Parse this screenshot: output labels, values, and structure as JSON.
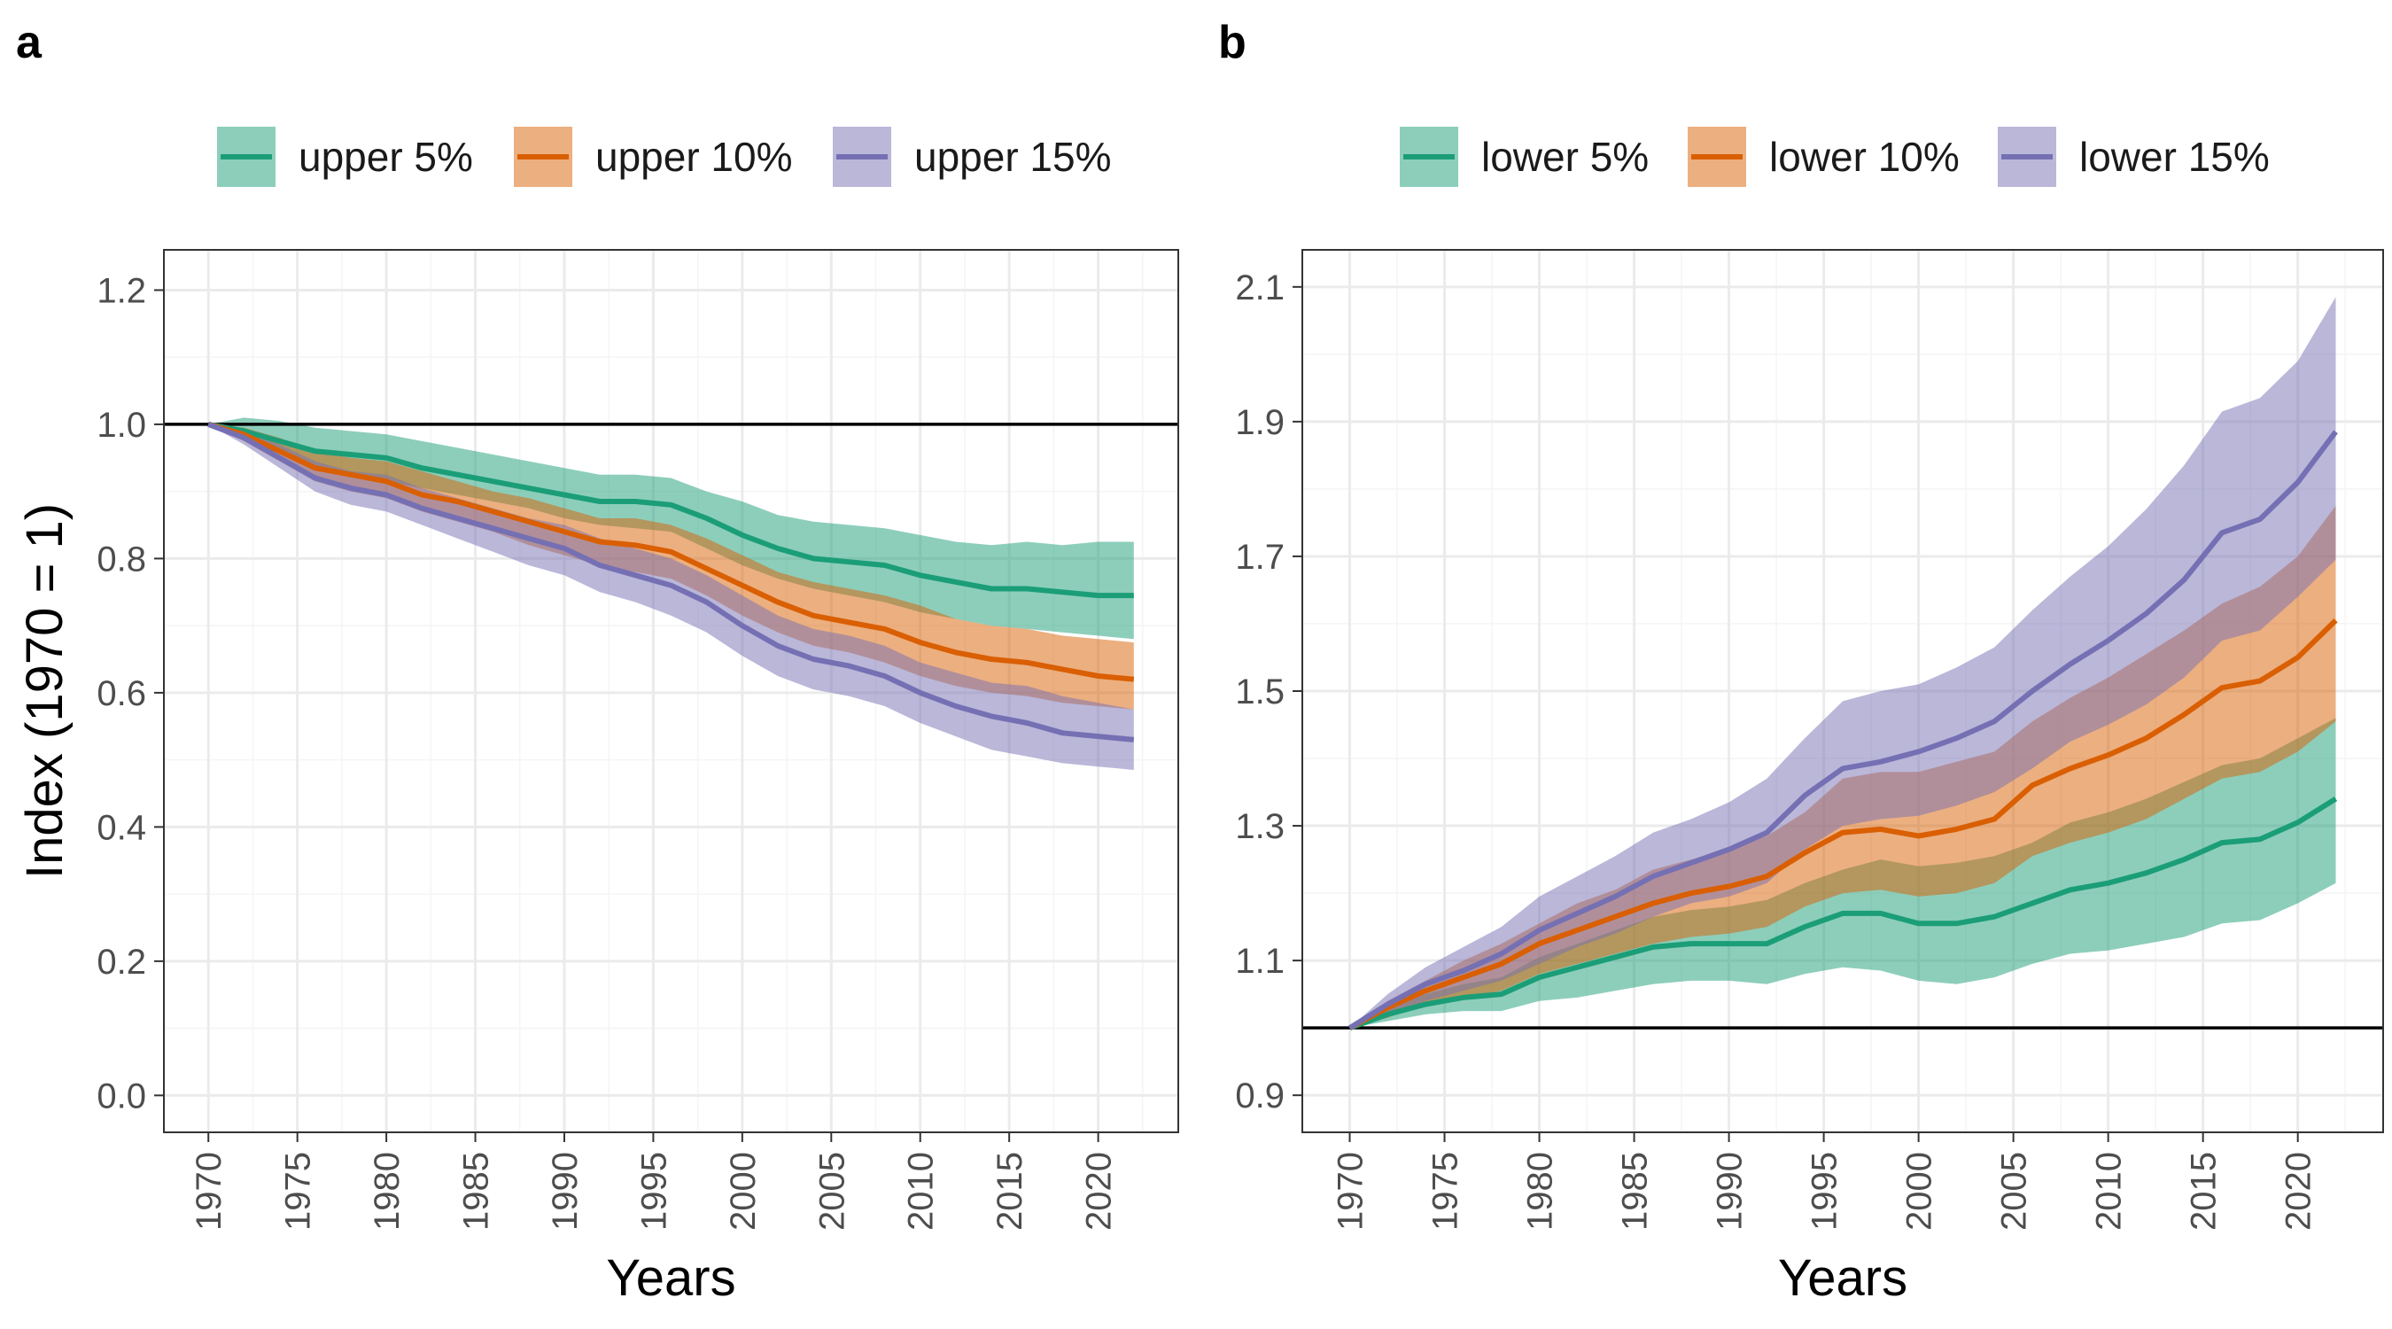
{
  "chart_data": [
    {
      "panel_label": "a",
      "type": "line",
      "xlabel": "Years",
      "ylabel": "Index (1970 = 1)",
      "xlim": [
        1967.5,
        2024.5
      ],
      "ylim": [
        -0.055,
        1.26
      ],
      "x_ticks": [
        "1970",
        "1975",
        "1980",
        "1985",
        "1990",
        "1995",
        "2000",
        "2005",
        "2010",
        "2015",
        "2020"
      ],
      "y_ticks": [
        "0.0",
        "0.2",
        "0.4",
        "0.6",
        "0.8",
        "1.0",
        "1.2"
      ],
      "reference_line": 1.0,
      "grid": true,
      "legend_position": "top",
      "series": [
        {
          "name": "upper 5%",
          "color": "#1b9e77",
          "fill": "#8fd0b8",
          "x": [
            1970,
            1972,
            1974,
            1976,
            1978,
            1980,
            1982,
            1984,
            1986,
            1988,
            1990,
            1992,
            1994,
            1996,
            1998,
            2000,
            2002,
            2004,
            2006,
            2008,
            2010,
            2012,
            2014,
            2016,
            2018,
            2020,
            2022
          ],
          "y": [
            1.0,
            0.99,
            0.975,
            0.96,
            0.955,
            0.95,
            0.935,
            0.925,
            0.915,
            0.905,
            0.895,
            0.885,
            0.885,
            0.88,
            0.86,
            0.835,
            0.815,
            0.8,
            0.795,
            0.79,
            0.775,
            0.765,
            0.755,
            0.755,
            0.75,
            0.745,
            0.745
          ],
          "lower": [
            1.0,
            0.985,
            0.96,
            0.935,
            0.925,
            0.915,
            0.905,
            0.895,
            0.885,
            0.875,
            0.86,
            0.85,
            0.845,
            0.84,
            0.815,
            0.79,
            0.77,
            0.755,
            0.745,
            0.735,
            0.72,
            0.71,
            0.7,
            0.695,
            0.69,
            0.685,
            0.68
          ],
          "upper": [
            1.0,
            1.01,
            1.005,
            0.995,
            0.99,
            0.985,
            0.975,
            0.965,
            0.955,
            0.945,
            0.935,
            0.925,
            0.925,
            0.92,
            0.9,
            0.885,
            0.865,
            0.855,
            0.85,
            0.845,
            0.835,
            0.825,
            0.82,
            0.825,
            0.82,
            0.825,
            0.825
          ]
        },
        {
          "name": "upper 10%",
          "color": "#d95f02",
          "fill": "#f0b080",
          "x": [
            1970,
            1972,
            1974,
            1976,
            1978,
            1980,
            1982,
            1984,
            1986,
            1988,
            1990,
            1992,
            1994,
            1996,
            1998,
            2000,
            2002,
            2004,
            2006,
            2008,
            2010,
            2012,
            2014,
            2016,
            2018,
            2020,
            2022
          ],
          "y": [
            1.0,
            0.985,
            0.96,
            0.935,
            0.925,
            0.915,
            0.895,
            0.885,
            0.87,
            0.855,
            0.84,
            0.825,
            0.82,
            0.81,
            0.785,
            0.76,
            0.735,
            0.715,
            0.705,
            0.695,
            0.675,
            0.66,
            0.65,
            0.645,
            0.635,
            0.625,
            0.62
          ],
          "lower": [
            1.0,
            0.975,
            0.945,
            0.915,
            0.9,
            0.89,
            0.87,
            0.855,
            0.84,
            0.82,
            0.805,
            0.79,
            0.78,
            0.77,
            0.745,
            0.715,
            0.69,
            0.67,
            0.66,
            0.645,
            0.625,
            0.61,
            0.6,
            0.595,
            0.585,
            0.58,
            0.575
          ],
          "upper": [
            1.0,
            0.995,
            0.98,
            0.96,
            0.95,
            0.945,
            0.93,
            0.915,
            0.9,
            0.89,
            0.875,
            0.86,
            0.86,
            0.85,
            0.83,
            0.805,
            0.78,
            0.765,
            0.755,
            0.745,
            0.73,
            0.71,
            0.7,
            0.695,
            0.685,
            0.68,
            0.675
          ]
        },
        {
          "name": "upper 15%",
          "color": "#7570b3",
          "fill": "#b9b6db",
          "x": [
            1970,
            1972,
            1974,
            1976,
            1978,
            1980,
            1982,
            1984,
            1986,
            1988,
            1990,
            1992,
            1994,
            1996,
            1998,
            2000,
            2002,
            2004,
            2006,
            2008,
            2010,
            2012,
            2014,
            2016,
            2018,
            2020,
            2022
          ],
          "y": [
            1.0,
            0.98,
            0.95,
            0.92,
            0.905,
            0.895,
            0.875,
            0.86,
            0.845,
            0.83,
            0.815,
            0.79,
            0.775,
            0.76,
            0.735,
            0.7,
            0.67,
            0.65,
            0.64,
            0.625,
            0.6,
            0.58,
            0.565,
            0.555,
            0.54,
            0.535,
            0.53
          ],
          "lower": [
            1.0,
            0.97,
            0.935,
            0.9,
            0.88,
            0.87,
            0.85,
            0.83,
            0.81,
            0.79,
            0.775,
            0.75,
            0.735,
            0.715,
            0.69,
            0.655,
            0.625,
            0.605,
            0.595,
            0.58,
            0.555,
            0.535,
            0.515,
            0.505,
            0.495,
            0.49,
            0.485
          ],
          "upper": [
            1.0,
            0.99,
            0.97,
            0.945,
            0.93,
            0.925,
            0.905,
            0.89,
            0.875,
            0.86,
            0.85,
            0.83,
            0.815,
            0.8,
            0.775,
            0.745,
            0.715,
            0.695,
            0.685,
            0.67,
            0.645,
            0.63,
            0.615,
            0.61,
            0.595,
            0.585,
            0.575
          ]
        }
      ]
    },
    {
      "panel_label": "b",
      "type": "line",
      "xlabel": "Years",
      "ylabel": "",
      "xlim": [
        1967.5,
        2024.5
      ],
      "ylim": [
        0.845,
        2.155
      ],
      "x_ticks": [
        "1970",
        "1975",
        "1980",
        "1985",
        "1990",
        "1995",
        "2000",
        "2005",
        "2010",
        "2015",
        "2020"
      ],
      "y_ticks": [
        "0.9",
        "1.1",
        "1.3",
        "1.5",
        "1.7",
        "1.9",
        "2.1"
      ],
      "reference_line": 1.0,
      "grid": true,
      "legend_position": "top",
      "series": [
        {
          "name": "lower 5%",
          "color": "#1b9e77",
          "fill": "#8fd0b8",
          "x": [
            1970,
            1972,
            1974,
            1976,
            1978,
            1980,
            1982,
            1984,
            1986,
            1988,
            1990,
            1992,
            1994,
            1996,
            1998,
            2000,
            2002,
            2004,
            2006,
            2008,
            2010,
            2012,
            2014,
            2016,
            2018,
            2020,
            2022
          ],
          "y": [
            1.0,
            1.02,
            1.035,
            1.045,
            1.05,
            1.075,
            1.09,
            1.105,
            1.12,
            1.125,
            1.125,
            1.125,
            1.15,
            1.17,
            1.17,
            1.155,
            1.155,
            1.165,
            1.185,
            1.205,
            1.215,
            1.23,
            1.25,
            1.275,
            1.28,
            1.305,
            1.34
          ],
          "lower": [
            1.0,
            1.01,
            1.02,
            1.025,
            1.025,
            1.04,
            1.045,
            1.055,
            1.065,
            1.07,
            1.07,
            1.065,
            1.08,
            1.09,
            1.085,
            1.07,
            1.065,
            1.075,
            1.095,
            1.11,
            1.115,
            1.125,
            1.135,
            1.155,
            1.16,
            1.185,
            1.215
          ],
          "upper": [
            1.0,
            1.03,
            1.05,
            1.065,
            1.075,
            1.105,
            1.125,
            1.145,
            1.165,
            1.175,
            1.18,
            1.19,
            1.215,
            1.235,
            1.25,
            1.24,
            1.245,
            1.255,
            1.275,
            1.305,
            1.32,
            1.34,
            1.365,
            1.39,
            1.4,
            1.43,
            1.46
          ]
        },
        {
          "name": "lower 10%",
          "color": "#d95f02",
          "fill": "#f0b080",
          "x": [
            1970,
            1972,
            1974,
            1976,
            1978,
            1980,
            1982,
            1984,
            1986,
            1988,
            1990,
            1992,
            1994,
            1996,
            1998,
            2000,
            2002,
            2004,
            2006,
            2008,
            2010,
            2012,
            2014,
            2016,
            2018,
            2020,
            2022
          ],
          "y": [
            1.0,
            1.03,
            1.055,
            1.075,
            1.095,
            1.125,
            1.145,
            1.165,
            1.185,
            1.2,
            1.21,
            1.225,
            1.26,
            1.29,
            1.295,
            1.285,
            1.295,
            1.31,
            1.36,
            1.385,
            1.405,
            1.43,
            1.465,
            1.505,
            1.515,
            1.55,
            1.605
          ],
          "lower": [
            1.0,
            1.015,
            1.035,
            1.045,
            1.055,
            1.08,
            1.095,
            1.11,
            1.125,
            1.135,
            1.14,
            1.15,
            1.18,
            1.2,
            1.205,
            1.195,
            1.2,
            1.215,
            1.255,
            1.275,
            1.29,
            1.31,
            1.34,
            1.37,
            1.38,
            1.41,
            1.455
          ],
          "upper": [
            1.0,
            1.04,
            1.07,
            1.1,
            1.125,
            1.155,
            1.185,
            1.205,
            1.235,
            1.25,
            1.265,
            1.285,
            1.32,
            1.37,
            1.38,
            1.38,
            1.395,
            1.41,
            1.455,
            1.49,
            1.52,
            1.555,
            1.59,
            1.63,
            1.655,
            1.7,
            1.775
          ]
        },
        {
          "name": "lower 15%",
          "color": "#7570b3",
          "fill": "#b9b6db",
          "x": [
            1970,
            1972,
            1974,
            1976,
            1978,
            1980,
            1982,
            1984,
            1986,
            1988,
            1990,
            1992,
            1994,
            1996,
            1998,
            2000,
            2002,
            2004,
            2006,
            2008,
            2010,
            2012,
            2014,
            2016,
            2018,
            2020,
            2022
          ],
          "y": [
            1.0,
            1.035,
            1.065,
            1.085,
            1.11,
            1.145,
            1.17,
            1.195,
            1.225,
            1.245,
            1.265,
            1.29,
            1.345,
            1.385,
            1.395,
            1.41,
            1.43,
            1.455,
            1.5,
            1.54,
            1.575,
            1.615,
            1.665,
            1.735,
            1.755,
            1.81,
            1.885
          ],
          "lower": [
            1.0,
            1.02,
            1.04,
            1.055,
            1.07,
            1.095,
            1.12,
            1.14,
            1.165,
            1.185,
            1.195,
            1.215,
            1.265,
            1.3,
            1.31,
            1.315,
            1.33,
            1.35,
            1.385,
            1.425,
            1.45,
            1.48,
            1.52,
            1.575,
            1.59,
            1.64,
            1.695
          ],
          "upper": [
            1.0,
            1.05,
            1.09,
            1.12,
            1.15,
            1.195,
            1.225,
            1.255,
            1.29,
            1.31,
            1.335,
            1.37,
            1.43,
            1.485,
            1.5,
            1.51,
            1.535,
            1.565,
            1.62,
            1.67,
            1.715,
            1.77,
            1.835,
            1.915,
            1.935,
            1.99,
            2.085
          ]
        }
      ]
    }
  ]
}
